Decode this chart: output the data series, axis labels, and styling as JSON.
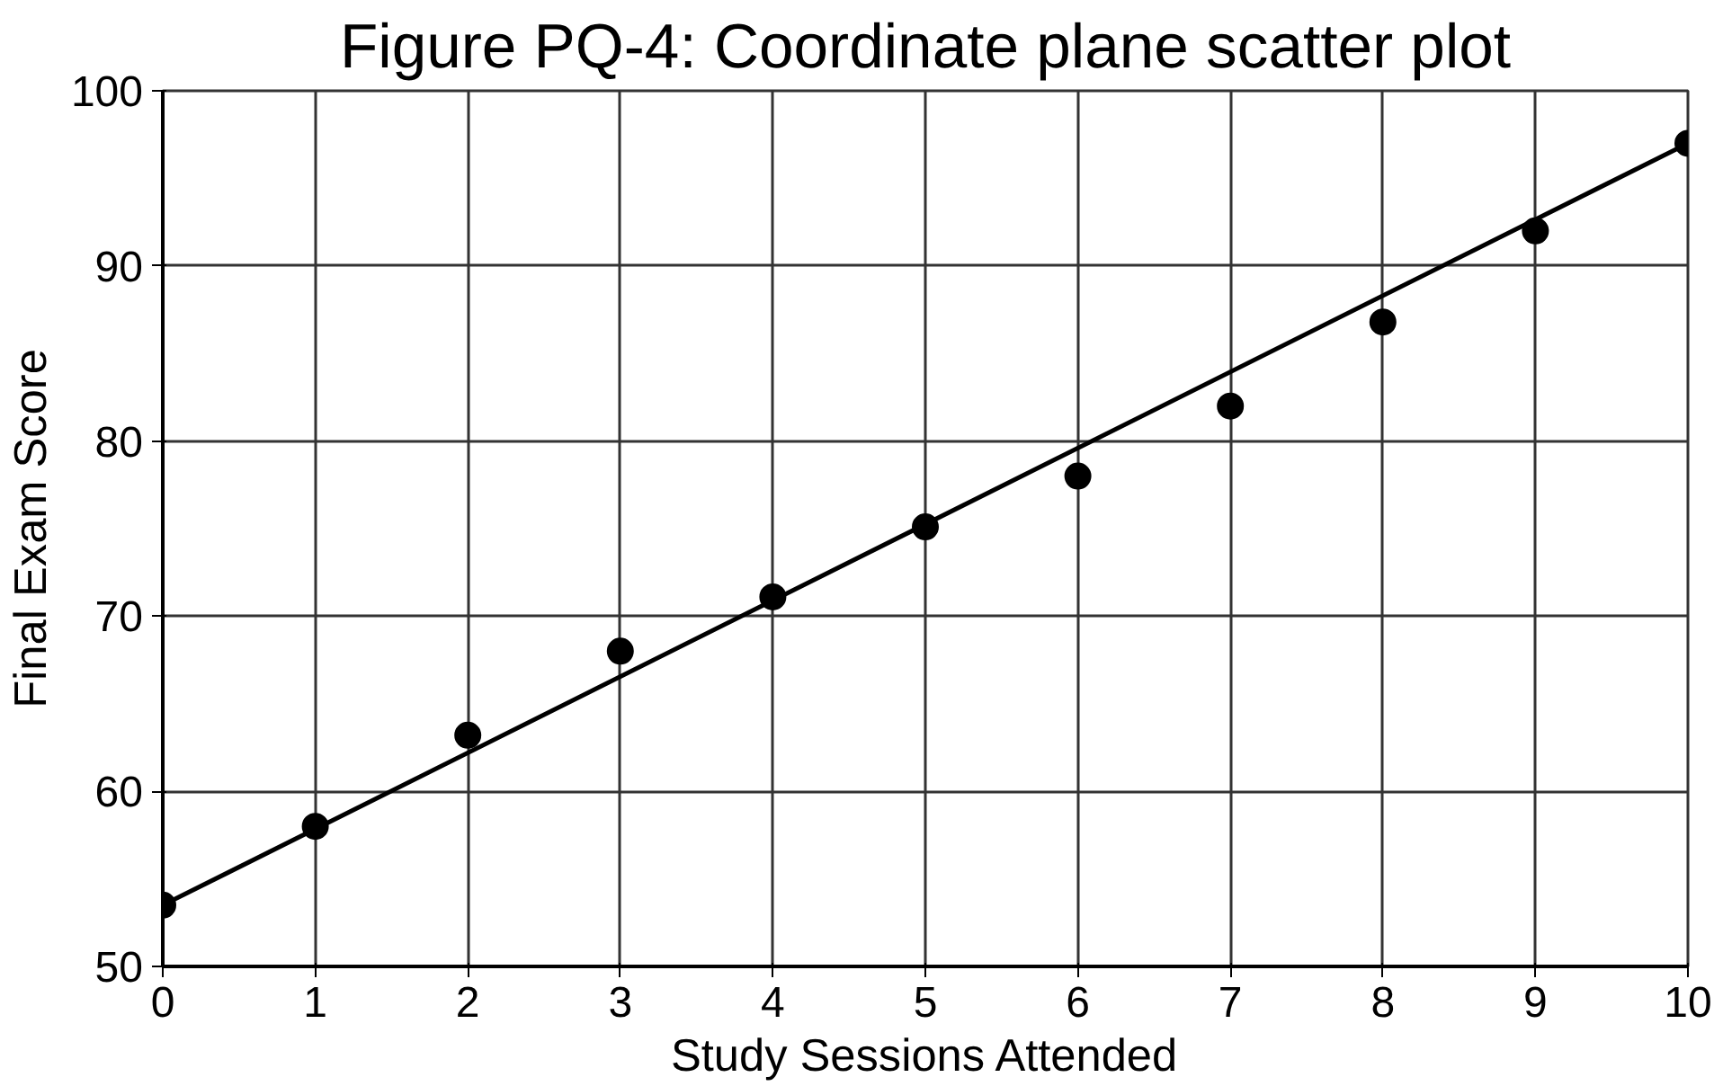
{
  "chart_data": {
    "type": "scatter",
    "title": "Figure PQ-4: Coordinate plane scatter plot",
    "xlabel": "Study Sessions Attended",
    "ylabel": "Final Exam Score",
    "xlim": [
      0,
      10
    ],
    "ylim": [
      50,
      100
    ],
    "xticks": [
      0,
      1,
      2,
      3,
      4,
      5,
      6,
      7,
      8,
      9,
      10
    ],
    "yticks": [
      50,
      60,
      70,
      80,
      90,
      100
    ],
    "grid": true,
    "series": [
      {
        "marker": "circle",
        "color": "#000000",
        "x": [
          0,
          1,
          2,
          3,
          4,
          5,
          6,
          7,
          8,
          9,
          10
        ],
        "values": [
          53.5,
          58,
          63.2,
          68,
          71.1,
          75.1,
          78,
          82,
          86.8,
          92,
          97
        ]
      },
      {
        "type": "line",
        "color": "#000000",
        "x": [
          0,
          10
        ],
        "values": [
          53.5,
          97
        ],
        "line_style": "solid"
      }
    ]
  }
}
